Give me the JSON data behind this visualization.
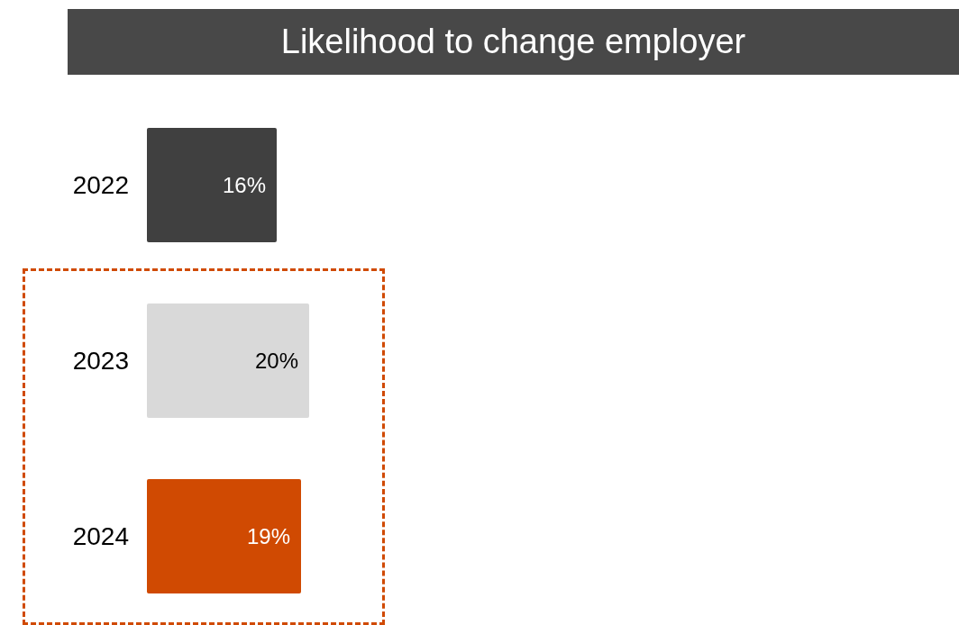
{
  "chart_data": {
    "type": "bar",
    "orientation": "horizontal",
    "title": "Likelihood to change employer",
    "categories": [
      "2022",
      "2023",
      "2024"
    ],
    "values": [
      16,
      20,
      19
    ],
    "colors": [
      "#404040",
      "#d9d9d9",
      "#d04a02"
    ],
    "value_labels": [
      "16%",
      "20%",
      "19%"
    ]
  }
}
